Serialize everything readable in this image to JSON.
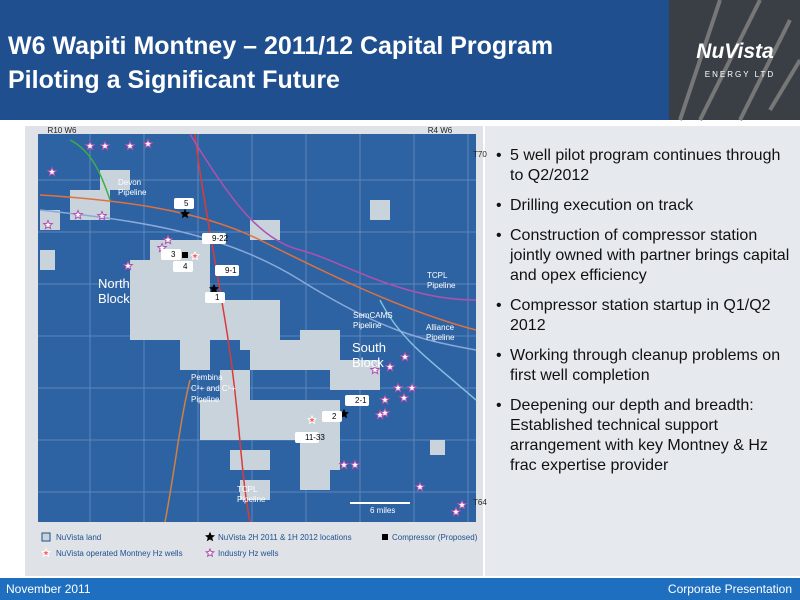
{
  "header": {
    "title_lines": [
      "W6 Wapiti Montney – 2011/12 Capital Program",
      "Piloting a Significant Future"
    ]
  },
  "logo": {
    "name": "NuVista",
    "tagline": "ENERGY LTD"
  },
  "map": {
    "range_labels": [
      "R10 W6",
      "R4 W6"
    ],
    "township_labels": [
      "T70",
      "T64"
    ],
    "labels": {
      "devon": [
        "Devon",
        "Pipeline"
      ],
      "north": [
        "North",
        "Block"
      ],
      "south": [
        "South",
        "Block"
      ],
      "tcpl_east": [
        "TCPL",
        "Pipeline"
      ],
      "semcams": [
        "SemCAMS",
        "Pipeline"
      ],
      "alliance": [
        "Alliance",
        "Pipeline"
      ],
      "pembina": [
        "Pembina",
        "C²+ and C⁵+",
        "Pipeline"
      ],
      "tcpl_south": [
        "TCPL",
        "Pipeline"
      ],
      "scale": "6 miles"
    },
    "wells": [
      "5",
      "9-22",
      "3",
      "4",
      "9-1",
      "1",
      "2-1",
      "2",
      "11-33"
    ]
  },
  "legend": [
    "NuVista land",
    "NuVista 2H 2011 & 1H 2012 locations",
    "Compressor (Proposed)",
    "NuVista operated Montney Hz wells",
    "Industry Hz wells"
  ],
  "bullets": [
    "5 well pilot program continues through to Q2/2012",
    "Drilling execution on track",
    "Construction of compressor station jointly owned with partner brings capital and opex efficiency",
    "Compressor station startup in Q1/Q2 2012",
    "Working through cleanup problems on first well completion",
    "Deepening our depth and breadth: Established technical support arrangement with key Montney & Hz frac expertise provider"
  ],
  "footer": {
    "date": "November  2011",
    "name": "Corporate Presentation"
  }
}
